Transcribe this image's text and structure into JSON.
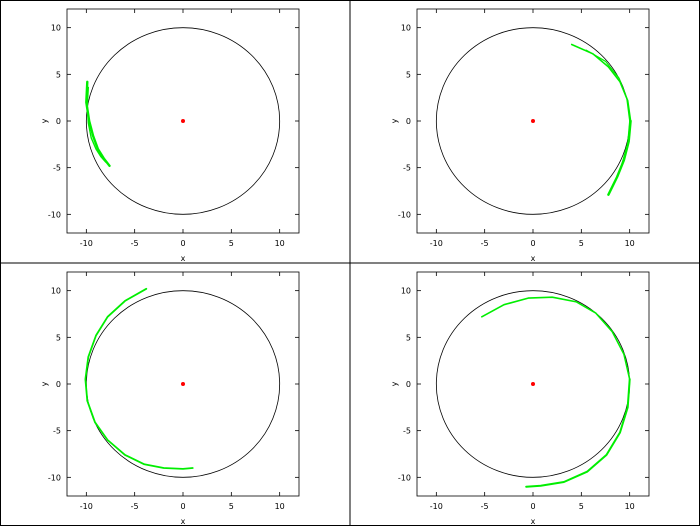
{
  "chart_data": [
    {
      "type": "line",
      "xlabel": "x",
      "ylabel": "y",
      "xlim": [
        -12,
        12
      ],
      "ylim": [
        -12,
        12
      ],
      "xticks": [
        "-10",
        "-5",
        "0",
        "5",
        "10"
      ],
      "yticks": [
        "10",
        "5",
        "0",
        "-5",
        "-10"
      ],
      "grid": false,
      "circle": {
        "center": [
          0,
          0
        ],
        "radius": 10,
        "color": "#000000"
      },
      "center_point": {
        "x": 0,
        "y": 0,
        "color": "#ff0000"
      },
      "series": [
        {
          "color": "#00ee00",
          "width": 2.4,
          "x": [
            -9.9,
            -10.0,
            -9.7,
            -9.3,
            -8.8,
            -8.2,
            -7.6
          ],
          "y": [
            4.2,
            2.0,
            0.0,
            -1.6,
            -3.0,
            -4.0,
            -4.8
          ]
        },
        {
          "color": "#00ee00",
          "width": 1.4,
          "x": [
            -9.8,
            -9.9,
            -9.8,
            -9.5,
            -9.0,
            -8.5,
            -8.0
          ],
          "y": [
            3.6,
            1.6,
            -0.2,
            -1.8,
            -3.0,
            -3.8,
            -4.4
          ]
        }
      ]
    },
    {
      "type": "line",
      "xlabel": "x",
      "ylabel": "y",
      "xlim": [
        -12,
        12
      ],
      "ylim": [
        -12,
        12
      ],
      "xticks": [
        "-10",
        "-5",
        "0",
        "5",
        "10"
      ],
      "yticks": [
        "10",
        "5",
        "0",
        "-5",
        "-10"
      ],
      "grid": false,
      "circle": {
        "center": [
          0,
          0
        ],
        "radius": 10,
        "color": "#000000"
      },
      "center_point": {
        "x": 0,
        "y": 0,
        "color": "#ff0000"
      },
      "series": [
        {
          "color": "#00ee00",
          "width": 1.6,
          "x": [
            4.0,
            6.2,
            7.8,
            9.0,
            9.8,
            10.1
          ],
          "y": [
            8.2,
            7.2,
            5.8,
            4.2,
            2.2,
            0.0
          ]
        },
        {
          "color": "#00ee00",
          "width": 2.4,
          "x": [
            10.1,
            9.9,
            9.4,
            8.7,
            7.8
          ],
          "y": [
            0.0,
            -2.2,
            -4.2,
            -6.0,
            -7.9
          ]
        },
        {
          "color": "#00ee00",
          "width": 1.2,
          "x": [
            5.5,
            7.5,
            8.9,
            9.7,
            10.0,
            9.8,
            9.2
          ],
          "y": [
            7.6,
            6.4,
            4.6,
            2.4,
            0.0,
            -2.4,
            -4.6
          ]
        }
      ]
    },
    {
      "type": "line",
      "xlabel": "x",
      "ylabel": "y",
      "xlim": [
        -12,
        12
      ],
      "ylim": [
        -12,
        12
      ],
      "xticks": [
        "-10",
        "-5",
        "0",
        "5",
        "10"
      ],
      "yticks": [
        "10",
        "5",
        "0",
        "-5",
        "-10"
      ],
      "grid": false,
      "circle": {
        "center": [
          0,
          0
        ],
        "radius": 10,
        "color": "#000000"
      },
      "center_point": {
        "x": 0,
        "y": 0,
        "color": "#ff0000"
      },
      "series": [
        {
          "color": "#00ee00",
          "width": 1.8,
          "x": [
            -3.8,
            -6.0,
            -7.8,
            -9.0,
            -9.8,
            -10.1,
            -9.9
          ],
          "y": [
            10.2,
            8.9,
            7.2,
            5.2,
            2.9,
            0.5,
            -1.8
          ]
        },
        {
          "color": "#00ee00",
          "width": 1.8,
          "x": [
            -9.9,
            -9.1,
            -7.8,
            -6.0,
            -4.0,
            -2.0,
            0.0,
            1.0
          ],
          "y": [
            -1.8,
            -4.1,
            -6.0,
            -7.6,
            -8.6,
            -9.0,
            -9.1,
            -9.0
          ]
        }
      ]
    },
    {
      "type": "line",
      "xlabel": "x",
      "ylabel": "y",
      "xlim": [
        -12,
        12
      ],
      "ylim": [
        -12,
        12
      ],
      "xticks": [
        "-10",
        "-5",
        "0",
        "5",
        "10"
      ],
      "yticks": [
        "10",
        "5",
        "0",
        "-5",
        "-10"
      ],
      "grid": false,
      "circle": {
        "center": [
          0,
          0
        ],
        "radius": 10,
        "color": "#000000"
      },
      "center_point": {
        "x": 0,
        "y": 0,
        "color": "#ff0000"
      },
      "series": [
        {
          "color": "#00ee00",
          "width": 1.6,
          "x": [
            -5.3,
            -3.0,
            -0.5,
            2.0,
            4.5,
            6.5,
            8.2,
            9.4,
            10.0
          ],
          "y": [
            7.2,
            8.5,
            9.2,
            9.3,
            8.8,
            7.6,
            5.6,
            3.2,
            0.5
          ]
        },
        {
          "color": "#00ee00",
          "width": 2.0,
          "x": [
            10.0,
            9.8,
            9.0,
            7.6,
            5.6,
            3.2,
            0.8,
            -0.7
          ],
          "y": [
            0.5,
            -2.5,
            -5.2,
            -7.6,
            -9.4,
            -10.5,
            -10.9,
            -11.0
          ]
        }
      ]
    }
  ]
}
